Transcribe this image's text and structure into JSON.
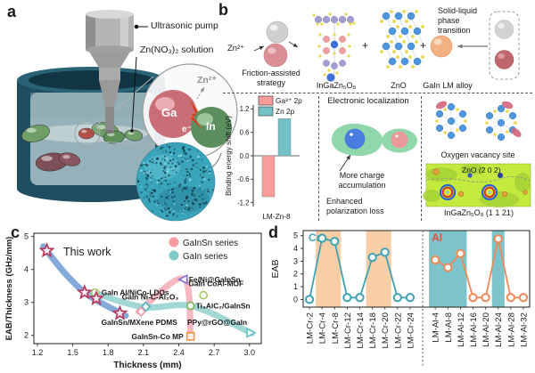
{
  "colors": {
    "series_pink": "#f79c9c",
    "series_teal": "#7ecac9",
    "cr_line": "#3fa2b2",
    "al_line": "#f08858",
    "band_orange": "#f8cea6",
    "band_teal": "#7cc3ca",
    "star": "#b5385f",
    "thiswork_blue": "#6f9bd2"
  },
  "panels": {
    "a": {
      "label": "a",
      "pump_label": "Ultrasonic pump",
      "solution_label": "Zn(NO₃)₂ solution",
      "ga_label": "Ga",
      "in_label": "In",
      "electron_label": "e⁻",
      "zn_ion_label": "Zn²⁺"
    },
    "b": {
      "label": "b",
      "zn_ion_label": "Zn²⁺",
      "strategy_label": "Friction-assisted strategy",
      "igzo_label": "InGaZn₅O₈",
      "plus": "+",
      "zno_label": "ZnO",
      "alloy_label": "GaIn LM alloy",
      "phase_label": "Solid-liquid phase transition",
      "localization_title": "Electronic localization",
      "charge_label": "More charge accumulation",
      "polarization_label": "Enhanced polarization loss",
      "vacancy_label": "Oxygen vacancy site",
      "zno_plane_label": "ZnO (2 0 2)",
      "igzo_plane_label": "InGaZn₅O₈ (1 1 21)"
    },
    "c": {
      "label": "c"
    },
    "d": {
      "label": "d"
    }
  },
  "chart_data": [
    {
      "id": "xps",
      "type": "bar",
      "categories": [
        "LM-Zn-8"
      ],
      "series": [
        {
          "name": "Ga³⁺ 2p",
          "values": [
            -1.05
          ],
          "color": "#f89c9c"
        },
        {
          "name": "Zn 2p",
          "values": [
            0.95
          ],
          "color": "#72c1c6"
        }
      ],
      "ylabel": "Binding energy shift (eV)",
      "ylim": [
        -1.3,
        1.3
      ],
      "yticks": [
        1.2,
        0.6,
        0.0,
        -0.6,
        -1.2
      ],
      "legend_position": "top-right"
    },
    {
      "id": "scatter_c",
      "type": "scatter",
      "xlabel": "Thickness (mm)",
      "ylabel": "EAB/Thickness (GHz/mm)",
      "xlim": [
        1.17,
        3.1
      ],
      "ylim": [
        1.75,
        5.1
      ],
      "xticks": [
        1.2,
        1.5,
        1.8,
        2.1,
        2.4,
        2.7,
        3.0
      ],
      "yticks": [
        2,
        3,
        4,
        5
      ],
      "legend": [
        {
          "label": "GaInSn series",
          "color": "#f79c9c"
        },
        {
          "label": "GaIn series",
          "color": "#7ecac9"
        }
      ],
      "this_work": {
        "label": "This work",
        "marker": "star",
        "color": "#b5385f",
        "points": [
          [
            1.28,
            4.57
          ],
          [
            1.6,
            3.3
          ],
          [
            1.7,
            3.12
          ],
          [
            1.9,
            2.67
          ]
        ]
      },
      "points": [
        {
          "label": "Fe/Ni@GaInSn",
          "x": 2.44,
          "y": 3.7,
          "marker": "triangle-left",
          "color": "#7f6fd0"
        },
        {
          "label": "GaIn CoAl-MOF",
          "x": 2.61,
          "y": 3.22,
          "marker": "circle",
          "color": "#a3c95c"
        },
        {
          "label": "GaIn Al/NiCo-LDOs",
          "x": 1.69,
          "y": 3.3,
          "marker": "circle",
          "color": "#a3c95c"
        },
        {
          "label": "GaIn Ni-C-Al₂O₃",
          "x": 2.12,
          "y": 2.87,
          "marker": "diamond",
          "color": "#4fb3c0"
        },
        {
          "label": "Ti₃AlC₂/GaInSn",
          "x": 2.5,
          "y": 2.9,
          "marker": "circle",
          "color": "#7cb356"
        },
        {
          "label": "GaInSn/MXene PDMS",
          "x": 2.08,
          "y": 2.72,
          "marker": "diamond",
          "color": "#ef9aa8"
        },
        {
          "label": "PPy@rGO@GaIn",
          "x": 3.01,
          "y": 2.08,
          "marker": "triangle-right",
          "color": "#66c2ca"
        },
        {
          "label": "GaInSn-Co MP",
          "x": 2.5,
          "y": 1.97,
          "marker": "square",
          "color": "#f09140"
        }
      ],
      "trend_lines": [
        {
          "name": "this-work",
          "color": "#6f9bd2",
          "points": [
            [
              1.25,
              4.7
            ],
            [
              1.45,
              3.82
            ],
            [
              1.65,
              3.18
            ],
            [
              1.95,
              2.6
            ]
          ]
        },
        {
          "name": "gainsn",
          "color": "#f4aab6",
          "points": [
            [
              2.06,
              2.72
            ],
            [
              2.44,
              3.72
            ],
            [
              2.5,
              1.95
            ]
          ]
        },
        {
          "name": "gain",
          "color": "#90d1cf",
          "points": [
            [
              1.67,
              3.3
            ],
            [
              2.1,
              2.86
            ],
            [
              2.52,
              2.88
            ],
            [
              3.02,
              2.06
            ]
          ]
        }
      ]
    },
    {
      "id": "line_d",
      "type": "line",
      "ylabel": "EAB",
      "ylim": [
        -0.6,
        5.4
      ],
      "yticks": [
        0,
        1,
        2,
        3,
        4,
        5
      ],
      "series": [
        {
          "name": "Cr",
          "color": "#3fa2b2",
          "label_color": "#3fa2b2",
          "band_color": "#f8cea6",
          "categories": [
            "LM-Cr-2",
            "LM-Cr-4",
            "LM-Cr-8",
            "LM-Cr-12",
            "LM-Cr-14",
            "LM-Cr-18",
            "LM-Cr-20",
            "LM-Cr-22",
            "LM-Cr-24"
          ],
          "values": [
            0.0,
            4.8,
            4.55,
            0.15,
            0.15,
            3.3,
            3.7,
            0.15,
            0.15
          ],
          "bands": [
            [
              1,
              2
            ],
            [
              5,
              6
            ]
          ]
        },
        {
          "name": "Al",
          "color": "#f08858",
          "label_color": "#e8503a",
          "band_color": "#7cc3ca",
          "categories": [
            "LM-Al-4",
            "LM-Al-8",
            "LM-Al-12",
            "LM-Al-16",
            "LM-Al-20",
            "LM-Al-24",
            "LM-Al-28",
            "LM-Al-32"
          ],
          "values": [
            3.1,
            2.5,
            3.6,
            0.15,
            0.15,
            4.75,
            0.15,
            0.15
          ],
          "bands": [
            [
              0,
              2
            ],
            [
              5,
              5
            ]
          ]
        }
      ]
    }
  ]
}
